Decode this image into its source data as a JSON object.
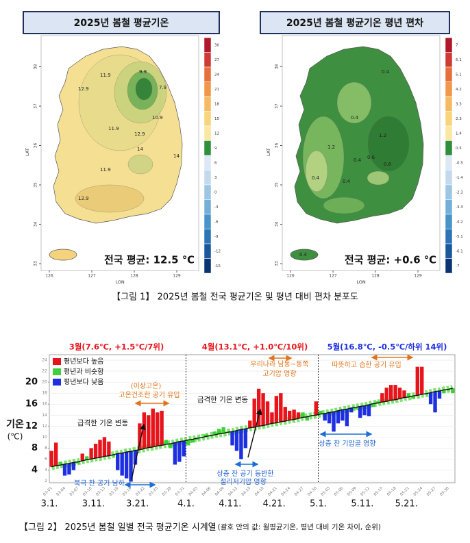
{
  "figure1": {
    "panels": [
      {
        "title": "2025년 봄철 평균기온",
        "average": "전국 평균: 12.5 ℃",
        "lat_label": "LAT",
        "lon_label": "LON",
        "lat_ticks": [
          33,
          34,
          35,
          36,
          37,
          38
        ],
        "lon_ticks": [
          126,
          127,
          128,
          129
        ],
        "colorbar": {
          "values": [
            30,
            27,
            24,
            21,
            18,
            15,
            12,
            9,
            6,
            3,
            0,
            -3,
            -6,
            -9,
            -12,
            -15
          ],
          "colors": [
            "#b2182b",
            "#d03a36",
            "#e6703c",
            "#f0974a",
            "#f5bb62",
            "#f8d47c",
            "#fbe6a2",
            "#2f8f3b",
            "#dce9f5",
            "#c2d9ee",
            "#9dc6e4",
            "#74afd8",
            "#4a93c8",
            "#2b74b5",
            "#1b579c",
            "#0b3470"
          ]
        },
        "contour_labels": [
          9.9,
          7.9,
          11.9,
          12.9,
          11.9,
          12.9,
          10.9,
          14,
          11.9,
          12.9,
          14
        ]
      },
      {
        "title": "2025년 봄철 평균기온 평년 편차",
        "average": "전국 평균: +0.6 ℃",
        "lat_label": "LAT",
        "lon_label": "LON",
        "lat_ticks": [
          33,
          34,
          35,
          36,
          37,
          38
        ],
        "lon_ticks": [
          126,
          127,
          128,
          129
        ],
        "colorbar": {
          "values": [
            7,
            6.1,
            5.1,
            4.2,
            3.3,
            2.3,
            1.4,
            0.5,
            -0.5,
            -1.4,
            -2.3,
            -3.3,
            -4.2,
            -5.1,
            -6.1,
            -7
          ],
          "colors": [
            "#b2182b",
            "#d03a36",
            "#e6703c",
            "#f0974a",
            "#f5bb62",
            "#f8d47c",
            "#fbe6a2",
            "#2f8f3b",
            "#dce9f5",
            "#c2d9ee",
            "#9dc6e4",
            "#74afd8",
            "#4a93c8",
            "#2b74b5",
            "#1b579c",
            "#0b3470"
          ]
        },
        "contour_labels": [
          0.4,
          0.4,
          1.2,
          1.2,
          0.6,
          0.4,
          0.6,
          0.4,
          0.4,
          0.4
        ]
      }
    ],
    "caption": "【그림 1】 2025년 봄철 전국 평균기온 및 평년 대비 편차 분포도"
  },
  "chart_data": {
    "type": "bar",
    "categories": [
      "03-01",
      null,
      null,
      "03-04",
      null,
      null,
      "03-07",
      null,
      null,
      "03-10",
      null,
      null,
      "03-13",
      null,
      null,
      "03-16",
      null,
      null,
      "03-19",
      null,
      null,
      "03-22",
      null,
      null,
      "03-25",
      null,
      null,
      "03-28",
      null,
      null,
      "03-31",
      null,
      null,
      "04-03",
      null,
      null,
      "04-06",
      null,
      null,
      "04-09",
      null,
      null,
      "04-12",
      null,
      null,
      "04-15",
      null,
      null,
      "04-18",
      null,
      null,
      "04-21",
      null,
      null,
      "04-24",
      null,
      null,
      "04-27",
      null,
      null,
      "04-30",
      null,
      null,
      "05-03",
      null,
      null,
      "05-06",
      null,
      null,
      "05-09",
      null,
      null,
      "05-12",
      null,
      null,
      "05-15",
      null,
      null,
      "05-18",
      null,
      null,
      "05-21",
      null,
      null,
      "05-24",
      null,
      null,
      "05-27",
      null,
      null,
      "05-30",
      null
    ],
    "series": [
      {
        "name": "평년보다 높음",
        "color": "#e8141b",
        "values": [
          7.5,
          9.0,
          null,
          null,
          null,
          null,
          null,
          7.0,
          null,
          8.0,
          8.8,
          9.5,
          10.0,
          9.2,
          null,
          null,
          null,
          null,
          null,
          null,
          12.5,
          14.5,
          14.0,
          15.2,
          14.5,
          14.8,
          null,
          null,
          null,
          null,
          null,
          null,
          null,
          null,
          null,
          null,
          null,
          null,
          null,
          null,
          null,
          null,
          null,
          null,
          null,
          13.0,
          17.0,
          18.8,
          18.0,
          16.5,
          14.5,
          17.5,
          18.0,
          15.5,
          14.8,
          15.0,
          14.5,
          null,
          null,
          null,
          16.5,
          null,
          null,
          null,
          null,
          null,
          null,
          null,
          null,
          null,
          null,
          null,
          null,
          null,
          null,
          18.0,
          19.0,
          19.5,
          19.5,
          19.0,
          18.5,
          null,
          null,
          22.8,
          22.8,
          null,
          null,
          null,
          null,
          null,
          null,
          null
        ]
      },
      {
        "name": "평년과 비슷함",
        "color": "#3fcf3a",
        "values": [
          null,
          null,
          5.5,
          null,
          null,
          null,
          5.2,
          null,
          6.5,
          null,
          null,
          null,
          null,
          null,
          6.5,
          null,
          null,
          null,
          null,
          null,
          null,
          null,
          null,
          null,
          null,
          null,
          9.5,
          8.0,
          null,
          null,
          null,
          8.5,
          9.0,
          9.5,
          10.0,
          10.5,
          10.2,
          11.0,
          11.5,
          11.8,
          11.0,
          null,
          null,
          null,
          null,
          null,
          null,
          null,
          null,
          null,
          null,
          null,
          null,
          null,
          null,
          null,
          null,
          14.5,
          13.0,
          14.0,
          null,
          14.8,
          null,
          null,
          null,
          null,
          null,
          null,
          null,
          15.0,
          null,
          null,
          null,
          15.5,
          16.5,
          null,
          null,
          null,
          null,
          null,
          null,
          18.0,
          17.0,
          null,
          null,
          18.0,
          null,
          null,
          null,
          18.0,
          18.5,
          18.0
        ]
      },
      {
        "name": "평년보다 낮음",
        "color": "#1d2fe0",
        "values": [
          null,
          null,
          null,
          3.0,
          3.2,
          4.0,
          null,
          null,
          null,
          null,
          null,
          null,
          null,
          null,
          null,
          4.0,
          3.0,
          2.5,
          1.9,
          5.0,
          null,
          null,
          null,
          null,
          null,
          null,
          null,
          null,
          5.0,
          5.5,
          6.5,
          null,
          null,
          null,
          null,
          null,
          null,
          null,
          null,
          null,
          null,
          8.5,
          7.5,
          6.0,
          8.0,
          null,
          null,
          null,
          null,
          null,
          null,
          null,
          null,
          null,
          null,
          null,
          null,
          null,
          null,
          null,
          null,
          null,
          13.0,
          12.5,
          11.0,
          12.5,
          13.0,
          12.0,
          14.5,
          null,
          13.5,
          14.0,
          13.8,
          null,
          null,
          null,
          null,
          null,
          null,
          null,
          null,
          null,
          null,
          null,
          null,
          null,
          16.0,
          14.5,
          17.0,
          null,
          null,
          null
        ]
      }
    ],
    "normal_values": [
      4.6,
      4.8,
      4.9,
      5.1,
      5.2,
      5.4,
      5.5,
      5.7,
      5.9,
      6.0,
      6.2,
      6.3,
      6.5,
      6.6,
      6.8,
      7.0,
      7.1,
      7.3,
      7.4,
      7.6,
      7.7,
      7.9,
      8.1,
      8.2,
      8.4,
      8.5,
      8.7,
      8.8,
      9.0,
      9.2,
      9.3,
      9.5,
      9.6,
      9.8,
      9.9,
      10.1,
      10.3,
      10.4,
      10.6,
      10.7,
      10.9,
      11.0,
      11.2,
      11.4,
      11.5,
      11.7,
      11.8,
      12.0,
      12.1,
      12.3,
      12.5,
      12.6,
      12.8,
      12.9,
      13.1,
      13.2,
      13.4,
      13.6,
      13.7,
      13.9,
      14.0,
      14.2,
      14.3,
      14.5,
      14.6,
      14.8,
      15.0,
      15.1,
      15.3,
      15.4,
      15.6,
      15.7,
      15.9,
      16.1,
      16.2,
      16.4,
      16.5,
      16.7,
      16.8,
      17.0,
      17.2,
      17.3,
      17.5,
      17.6,
      17.8,
      17.9,
      18.1,
      18.3,
      18.4,
      18.6,
      18.7,
      18.9
    ],
    "normal_color": "#111111",
    "normal_band_color": "#7fe36f",
    "ylim": [
      1.7,
      25
    ],
    "yticks": [
      4,
      8,
      12,
      16,
      20
    ],
    "yticks_minor": [
      2,
      4,
      6,
      8,
      10,
      12,
      14,
      16,
      18,
      20,
      22,
      24
    ],
    "ylabel": [
      "기온",
      "(℃)"
    ],
    "date_labels": [
      "3.1.",
      "3.11.",
      "3.21.",
      "4.1.",
      "4.11.",
      "4.21.",
      "5.1.",
      "5.11.",
      "5.21."
    ],
    "month_summaries": [
      "3월(7.6℃, +1.5℃/7위)",
      "4월(13.1℃, +1.0℃/10위)",
      "5월(16.8℃, -0.5℃/하위 14위)"
    ],
    "annotations": {
      "hot_1": "(이상고온)",
      "hot_2": "고온건조한 공기 유입",
      "swing_1": "급격한 기온 변동",
      "swing_2": "급격한 기온 변동",
      "arctic": "북극 찬 공기 남하",
      "cutoff_1": "상층 찬 공기 동반한",
      "cutoff_2": "절리저기압 영향",
      "high_1": "우리나라 남동~동쪽",
      "high_2": "고기압 영향",
      "humid": "따뜻하고 습한 공기 유입",
      "trough": "상층 찬 기압골 영향"
    },
    "caption": "【그림 2】 2025년 봄철 일별 전국 평균기온 시계열",
    "caption_note": "(괄호 안의 값: 월평균기온, 평년 대비 기온 차이, 순위)"
  }
}
